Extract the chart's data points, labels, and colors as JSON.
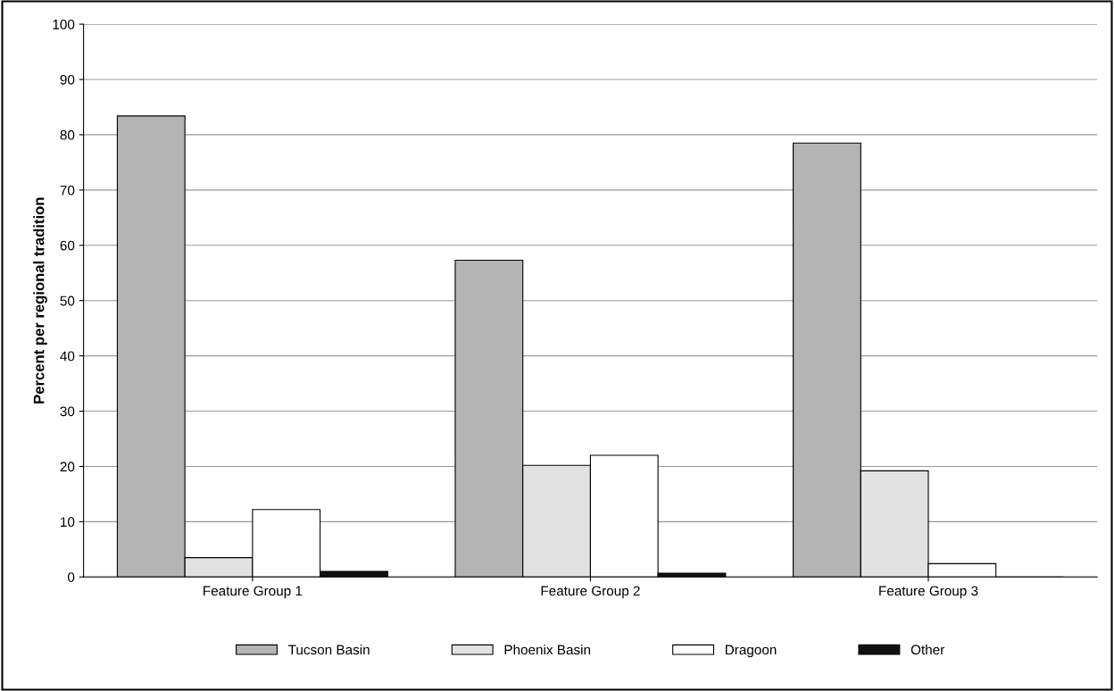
{
  "chart_data": {
    "type": "bar",
    "ylabel": "Percent per regional tradition",
    "categories": [
      "Feature Group 1",
      "Feature Group 2",
      "Feature Group 3"
    ],
    "series": [
      {
        "name": "Tucson Basin",
        "color": "#b4b4b4",
        "values": [
          83.4,
          57.3,
          78.5
        ]
      },
      {
        "name": "Phoenix Basin",
        "color": "#e2e2e2",
        "values": [
          3.5,
          20.2,
          19.2
        ]
      },
      {
        "name": "Dragoon",
        "color": "#ffffff",
        "values": [
          12.2,
          22,
          2.4
        ]
      },
      {
        "name": "Other",
        "color": "#111111",
        "values": [
          1,
          0.7,
          0
        ]
      }
    ],
    "ylim": [
      0,
      100
    ],
    "yticks": [
      0,
      10,
      20,
      30,
      40,
      50,
      60,
      70,
      80,
      90,
      100
    ],
    "grid": "y",
    "legend": "bottom"
  }
}
